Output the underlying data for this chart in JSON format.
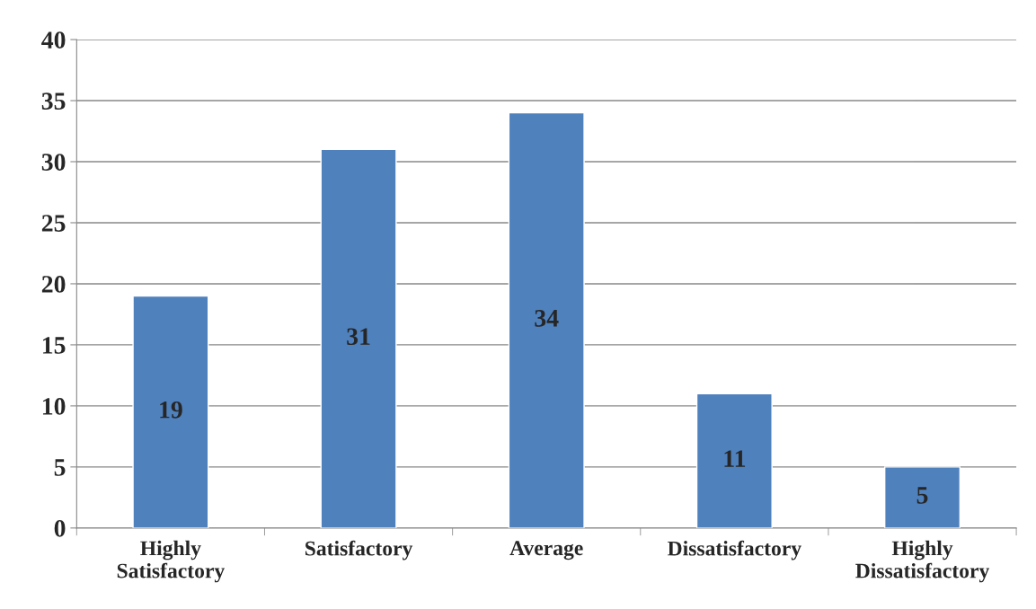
{
  "chart_data": {
    "type": "bar",
    "categories": [
      "Highly\nSatisfactory",
      "Satisfactory",
      "Average",
      "Dissatisfactory",
      "Highly\nDissatisfactory"
    ],
    "values": [
      19,
      31,
      34,
      11,
      5
    ],
    "color": "#4f81bd",
    "ylim": [
      0,
      40
    ],
    "yticks": [
      0,
      5,
      10,
      15,
      20,
      25,
      30,
      35,
      40
    ],
    "grid": "y",
    "data_labels": true,
    "legend": false
  }
}
